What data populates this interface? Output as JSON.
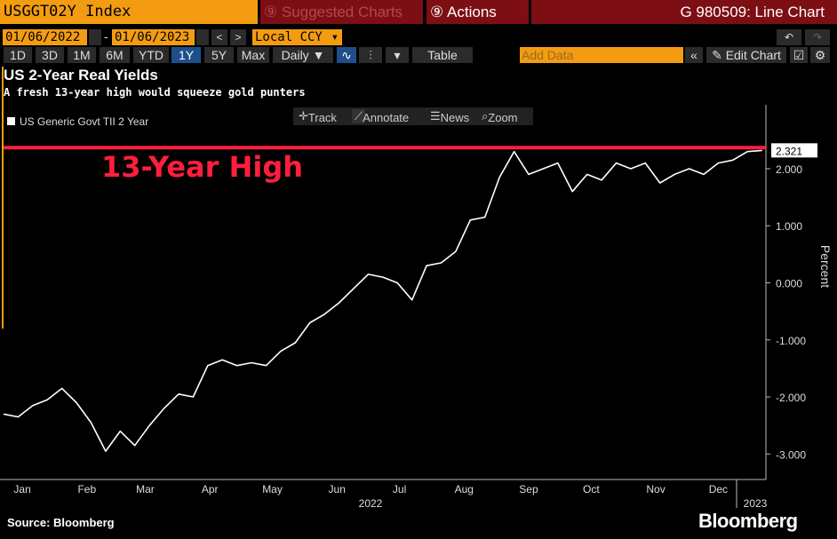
{
  "toolbar": {
    "ticker": "USGGT02Y Index",
    "suggested": "Suggested Charts",
    "actions": "Actions",
    "chart_id": "G 980509: Line Chart",
    "start_date": "01/06/2022",
    "end_date": "01/06/2023",
    "currency": "Local CCY",
    "ranges": [
      "1D",
      "3D",
      "1M",
      "6M",
      "YTD",
      "1Y",
      "5Y",
      "Max"
    ],
    "selected_range": "1Y",
    "frequency": "Daily",
    "table": "Table",
    "add_data": "Add Data",
    "edit_chart": "Edit Chart"
  },
  "chart_tools": {
    "track": "Track",
    "annotate": "Annotate",
    "news": "News",
    "zoom": "Zoom"
  },
  "footer": {
    "source": "Source: Bloomberg",
    "brand": "Bloomberg"
  },
  "colors": {
    "accent_orange": "#f39c12",
    "bar_red": "#7d0f14",
    "highlight_red": "#ff1e3c",
    "line": "#ffffff"
  },
  "chart_data": {
    "type": "line",
    "title": "US 2-Year Real Yields",
    "subtitle": "A fresh 13-year high would squeeze gold punters",
    "series": [
      {
        "name": "US Generic Govt TII 2 Year",
        "x": [
          "2022-01-06",
          "2022-01-13",
          "2022-01-20",
          "2022-01-27",
          "2022-02-03",
          "2022-02-10",
          "2022-02-17",
          "2022-02-24",
          "2022-03-03",
          "2022-03-10",
          "2022-03-17",
          "2022-03-24",
          "2022-03-31",
          "2022-04-07",
          "2022-04-14",
          "2022-04-21",
          "2022-04-28",
          "2022-05-05",
          "2022-05-12",
          "2022-05-19",
          "2022-05-26",
          "2022-06-02",
          "2022-06-09",
          "2022-06-16",
          "2022-06-23",
          "2022-06-30",
          "2022-07-07",
          "2022-07-14",
          "2022-07-21",
          "2022-07-28",
          "2022-08-04",
          "2022-08-11",
          "2022-08-18",
          "2022-08-25",
          "2022-09-01",
          "2022-09-08",
          "2022-09-15",
          "2022-09-22",
          "2022-09-29",
          "2022-10-06",
          "2022-10-13",
          "2022-10-20",
          "2022-10-27",
          "2022-11-03",
          "2022-11-10",
          "2022-11-17",
          "2022-11-24",
          "2022-12-01",
          "2022-12-08",
          "2022-12-15",
          "2022-12-22",
          "2022-12-29",
          "2023-01-05"
        ],
        "values": [
          -2.3,
          -2.35,
          -2.15,
          -2.05,
          -1.85,
          -2.1,
          -2.45,
          -2.95,
          -2.6,
          -2.85,
          -2.5,
          -2.2,
          -1.95,
          -2.0,
          -1.45,
          -1.35,
          -1.45,
          -1.4,
          -1.45,
          -1.2,
          -1.05,
          -0.7,
          -0.55,
          -0.35,
          -0.1,
          0.15,
          0.1,
          0.0,
          -0.3,
          0.3,
          0.35,
          0.55,
          1.1,
          1.15,
          1.85,
          2.3,
          1.9,
          2.0,
          2.1,
          1.6,
          1.9,
          1.8,
          2.1,
          2.0,
          2.1,
          1.75,
          1.9,
          2.0,
          1.9,
          2.1,
          2.15,
          2.3,
          2.321
        ]
      }
    ],
    "x_ticks": [
      "Jan",
      "Feb",
      "Mar",
      "Apr",
      "May",
      "Jun",
      "Jul",
      "Aug",
      "Sep",
      "Oct",
      "Nov",
      "Dec"
    ],
    "x_year_labels": [
      "2022",
      "2023"
    ],
    "y_ticks": [
      "2.000",
      "1.000",
      "0.000",
      "-1.000",
      "-2.000",
      "-3.000"
    ],
    "ylabel": "Percent",
    "ylim": [
      -3.4,
      2.7
    ],
    "last_value": "2.321",
    "annotation": "13-Year High",
    "reference_line": 2.37,
    "legend_position": "top-left",
    "grid": false
  }
}
